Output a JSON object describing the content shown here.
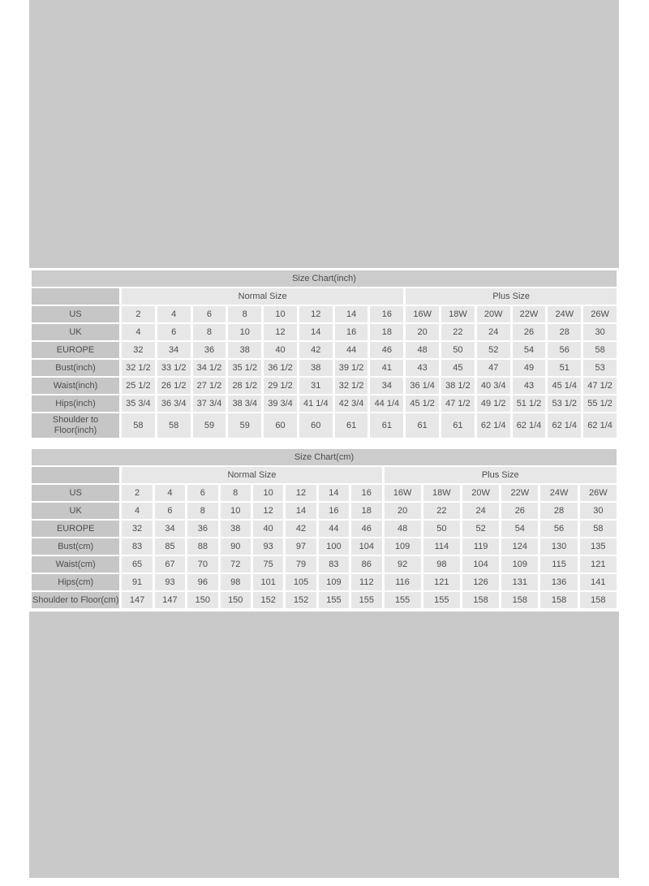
{
  "page": {
    "bg_color": "#ffffff",
    "placeholder_color": "#c9c9c9",
    "table_text_color": "#4d4d4d",
    "header_cell_color": "#c6c6c6",
    "data_cell_color": "#e7e7e7"
  },
  "chart_data": [
    {
      "type": "table",
      "title": "Size Chart(inch)",
      "col_groups": [
        {
          "label": "Normal Size",
          "span": 8
        },
        {
          "label": "Plus Size",
          "span": 6
        }
      ],
      "rows": [
        {
          "label": "US",
          "values": [
            "2",
            "4",
            "6",
            "8",
            "10",
            "12",
            "14",
            "16",
            "16W",
            "18W",
            "20W",
            "22W",
            "24W",
            "26W"
          ]
        },
        {
          "label": "UK",
          "values": [
            "4",
            "6",
            "8",
            "10",
            "12",
            "14",
            "16",
            "18",
            "20",
            "22",
            "24",
            "26",
            "28",
            "30"
          ]
        },
        {
          "label": "EUROPE",
          "values": [
            "32",
            "34",
            "36",
            "38",
            "40",
            "42",
            "44",
            "46",
            "48",
            "50",
            "52",
            "54",
            "56",
            "58"
          ]
        },
        {
          "label": "Bust(inch)",
          "values": [
            "32 1/2",
            "33 1/2",
            "34 1/2",
            "35 1/2",
            "36 1/2",
            "38",
            "39 1/2",
            "41",
            "43",
            "45",
            "47",
            "49",
            "51",
            "53"
          ]
        },
        {
          "label": "Waist(inch)",
          "values": [
            "25 1/2",
            "26 1/2",
            "27 1/2",
            "28 1/2",
            "29 1/2",
            "31",
            "32 1/2",
            "34",
            "36 1/4",
            "38 1/2",
            "40 3/4",
            "43",
            "45 1/4",
            "47 1/2"
          ]
        },
        {
          "label": "Hips(inch)",
          "values": [
            "35 3/4",
            "36 3/4",
            "37 3/4",
            "38 3/4",
            "39 3/4",
            "41 1/4",
            "42 3/4",
            "44 1/4",
            "45 1/2",
            "47 1/2",
            "49 1/2",
            "51 1/2",
            "53 1/2",
            "55 1/2"
          ]
        },
        {
          "label": "Shoulder to\nFloor(inch)",
          "values": [
            "58",
            "58",
            "59",
            "59",
            "60",
            "60",
            "61",
            "61",
            "61",
            "61",
            "62 1/4",
            "62 1/4",
            "62 1/4",
            "62 1/4"
          ]
        }
      ]
    },
    {
      "type": "table",
      "title": "Size Chart(cm)",
      "col_groups": [
        {
          "label": "Normal Size",
          "span": 8
        },
        {
          "label": "Plus Size",
          "span": 6
        }
      ],
      "rows": [
        {
          "label": "US",
          "values": [
            "2",
            "4",
            "6",
            "8",
            "10",
            "12",
            "14",
            "16",
            "16W",
            "18W",
            "20W",
            "22W",
            "24W",
            "26W"
          ]
        },
        {
          "label": "UK",
          "values": [
            "4",
            "6",
            "8",
            "10",
            "12",
            "14",
            "16",
            "18",
            "20",
            "22",
            "24",
            "26",
            "28",
            "30"
          ]
        },
        {
          "label": "EUROPE",
          "values": [
            "32",
            "34",
            "36",
            "38",
            "40",
            "42",
            "44",
            "46",
            "48",
            "50",
            "52",
            "54",
            "56",
            "58"
          ]
        },
        {
          "label": "Bust(cm)",
          "values": [
            "83",
            "85",
            "88",
            "90",
            "93",
            "97",
            "100",
            "104",
            "109",
            "114",
            "119",
            "124",
            "130",
            "135"
          ]
        },
        {
          "label": "Waist(cm)",
          "values": [
            "65",
            "67",
            "70",
            "72",
            "75",
            "79",
            "83",
            "86",
            "92",
            "98",
            "104",
            "109",
            "115",
            "121"
          ]
        },
        {
          "label": "Hips(cm)",
          "values": [
            "91",
            "93",
            "96",
            "98",
            "101",
            "105",
            "109",
            "112",
            "116",
            "121",
            "126",
            "131",
            "136",
            "141"
          ]
        },
        {
          "label": "Shoulder to Floor(cm)",
          "values": [
            "147",
            "147",
            "150",
            "150",
            "152",
            "152",
            "155",
            "155",
            "155",
            "155",
            "158",
            "158",
            "158",
            "158"
          ]
        }
      ]
    }
  ]
}
